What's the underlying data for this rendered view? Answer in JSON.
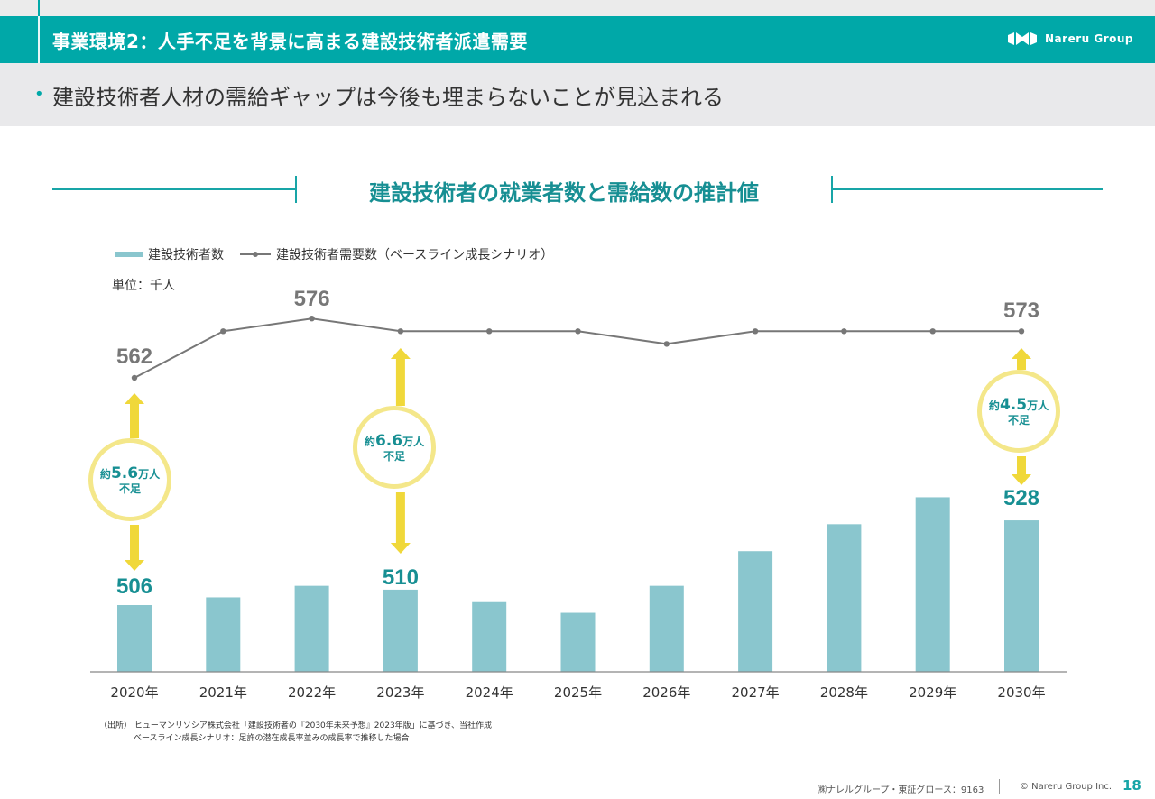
{
  "header": {
    "title": "事業環境2：人手不足を背景に高まる建設技術者派遣需要",
    "logo_text": "Nareru Group"
  },
  "subheader": {
    "bullet": "•",
    "text": "建設技術者人材の需給ギャップは今後も埋まらないことが見込まれる"
  },
  "section_title": "建設技術者の就業者数と需給数の推計値",
  "legend": {
    "bar_label": "建設技術者数",
    "line_label": "建設技術者需要数（ベースライン成長シナリオ）"
  },
  "unit_label": "単位：千人",
  "chart_data": {
    "type": "bar",
    "categories": [
      "2020年",
      "2021年",
      "2022年",
      "2023年",
      "2024年",
      "2025年",
      "2026年",
      "2027年",
      "2028年",
      "2029年",
      "2030年"
    ],
    "series": [
      {
        "name": "建設技術者数",
        "type": "bar",
        "values": [
          506,
          508,
          511,
          510,
          507,
          504,
          511,
          520,
          527,
          534,
          528
        ],
        "labeled": [
          0,
          3,
          10
        ]
      },
      {
        "name": "建設技術者需要数（ベースライン成長シナリオ）",
        "type": "line",
        "values": [
          562,
          573,
          576,
          573,
          573,
          573,
          570,
          573,
          573,
          573,
          573
        ],
        "labeled": [
          0,
          2,
          10
        ]
      }
    ],
    "colors": {
      "bar": "#8ac6ce",
      "line": "#777777",
      "bar_label": "#178f93",
      "line_label": "#777777",
      "arrow": "#f0d83a"
    },
    "grid": false,
    "legend_position": "top-left"
  },
  "callouts": [
    {
      "prefix": "約",
      "number": "5.6",
      "suffix": "万人",
      "line2": "不足"
    },
    {
      "prefix": "約",
      "number": "6.6",
      "suffix": "万人",
      "line2": "不足"
    },
    {
      "prefix": "約",
      "number": "4.5",
      "suffix": "万人",
      "line2": "不足"
    }
  ],
  "source": {
    "line1": "（出所） ヒューマンリソシア株式会社「建設技術者の『2030年未来予想』2023年版」に基づき、当社作成",
    "line2": "ベースライン成長シナリオ：足許の潜在成長率並みの成長率で推移した場合"
  },
  "footer": {
    "company": "㈱ナレルグループ・東証グロース：9163",
    "copyright": "© Nareru Group Inc.",
    "page": "18"
  }
}
